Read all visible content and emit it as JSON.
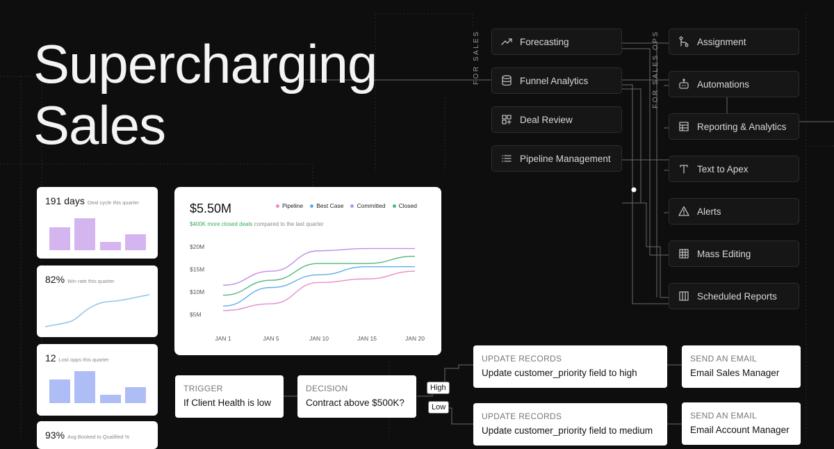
{
  "headline": [
    "Supercharging",
    "Sales"
  ],
  "stats": [
    {
      "value": "191 days",
      "caption": "Deal cycle this quarter",
      "kind": "bars",
      "color": "#d5b5f0",
      "bars": [
        0.62,
        0.85,
        0.22,
        0.43
      ]
    },
    {
      "value": "82%",
      "caption": "Win rate this quarter",
      "kind": "line",
      "color": "#8fc4ea"
    },
    {
      "value": "12",
      "caption": "Lost opps this quarter",
      "kind": "bars",
      "color": "#aebdf5",
      "bars": [
        0.72,
        1.0,
        0.26,
        0.5
      ]
    },
    {
      "value": "93%",
      "caption": "Avg Booked to Qualified %",
      "kind": "none"
    }
  ],
  "main_chart": {
    "value": "$5.50M",
    "delta_highlight": "$400K more closed deals",
    "delta_rest": "compared to the last quarter"
  },
  "chart_data": {
    "type": "line",
    "x": [
      "JAN 1",
      "JAN 5",
      "JAN 10",
      "JAN 15",
      "JAN 20"
    ],
    "ytick_labels": [
      "$20M",
      "$15M",
      "$10M",
      "$5M"
    ],
    "ylim": [
      2.5,
      20
    ],
    "legend_position": "top-right",
    "series": [
      {
        "name": "Pipeline",
        "color": "#e58ccd",
        "x_index": [
          0,
          1,
          2,
          3,
          4
        ],
        "values": [
          5.9,
          7.4,
          12.1,
          12.9,
          14.6
        ],
        "shape": "mid"
      },
      {
        "name": "Best Case",
        "color": "#5baeea",
        "values": [
          6.9,
          11.0,
          13.8,
          15.6,
          15.6
        ],
        "shape": "mid"
      },
      {
        "name": "Committed",
        "color": "#c08ce6",
        "values": [
          11.5,
          14.6,
          19.1,
          19.6,
          19.6
        ],
        "shape": "mid"
      },
      {
        "name": "Closed",
        "color": "#4fb87a",
        "values": [
          9.3,
          12.6,
          16.3,
          16.3,
          17.9
        ],
        "shape": "mid"
      }
    ]
  },
  "for_sales_label": "FOR SALES",
  "for_ops_label": "FOR SALES OPS",
  "sales_features": [
    {
      "label": "Forecasting",
      "icon": "trend-up-icon"
    },
    {
      "label": "Funnel Analytics",
      "icon": "database-icon"
    },
    {
      "label": "Deal Review",
      "icon": "grid-plus-icon"
    },
    {
      "label": "Pipeline Management",
      "icon": "list-icon"
    }
  ],
  "ops_features": [
    {
      "label": "Assignment",
      "icon": "branch-icon"
    },
    {
      "label": "Automations",
      "icon": "robot-icon"
    },
    {
      "label": "Reporting & Analytics",
      "icon": "table-icon"
    },
    {
      "label": "Text to Apex",
      "icon": "text-t-icon"
    },
    {
      "label": "Alerts",
      "icon": "warning-icon"
    },
    {
      "label": "Mass Editing",
      "icon": "grid-icon"
    },
    {
      "label": "Scheduled Reports",
      "icon": "columns-icon"
    }
  ],
  "flow": {
    "trigger": {
      "type": "TRIGGER",
      "text": "If Client Health is low"
    },
    "decision": {
      "type": "DECISION",
      "text": "Contract above $500K?"
    },
    "high_label": "High",
    "low_label": "Low",
    "update_high": {
      "type": "UPDATE RECORDS",
      "text": "Update customer_priority field to high"
    },
    "update_medium": {
      "type": "UPDATE RECORDS",
      "text": "Update customer_priority field to medium"
    },
    "email_sales": {
      "type": "SEND AN EMAIL",
      "text": "Email Sales Manager"
    },
    "email_account": {
      "type": "SEND AN EMAIL",
      "text": "Email Account Manager"
    }
  }
}
